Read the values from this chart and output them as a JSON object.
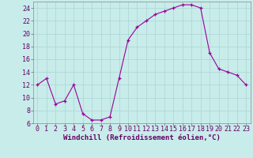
{
  "hours": [
    0,
    1,
    2,
    3,
    4,
    5,
    6,
    7,
    8,
    9,
    10,
    11,
    12,
    13,
    14,
    15,
    16,
    17,
    18,
    19,
    20,
    21,
    22,
    23
  ],
  "values": [
    12,
    13,
    9,
    9.5,
    12,
    7.5,
    6.5,
    6.5,
    7,
    13,
    19,
    21,
    22,
    23,
    23.5,
    24,
    24.5,
    24.5,
    24,
    17,
    14.5,
    14,
    13.5,
    12
  ],
  "line_color": "#990099",
  "marker": "+",
  "bg_color": "#c8ecea",
  "grid_color": "#b0d8d8",
  "xlabel": "Windchill (Refroidissement éolien,°C)",
  "ylim": [
    6,
    25
  ],
  "xlim": [
    -0.5,
    23.5
  ],
  "yticks": [
    6,
    8,
    10,
    12,
    14,
    16,
    18,
    20,
    22,
    24
  ],
  "xticks": [
    0,
    1,
    2,
    3,
    4,
    5,
    6,
    7,
    8,
    9,
    10,
    11,
    12,
    13,
    14,
    15,
    16,
    17,
    18,
    19,
    20,
    21,
    22,
    23
  ],
  "xlabel_fontsize": 6.5,
  "tick_fontsize": 6.0,
  "line_color_label": "#660066"
}
